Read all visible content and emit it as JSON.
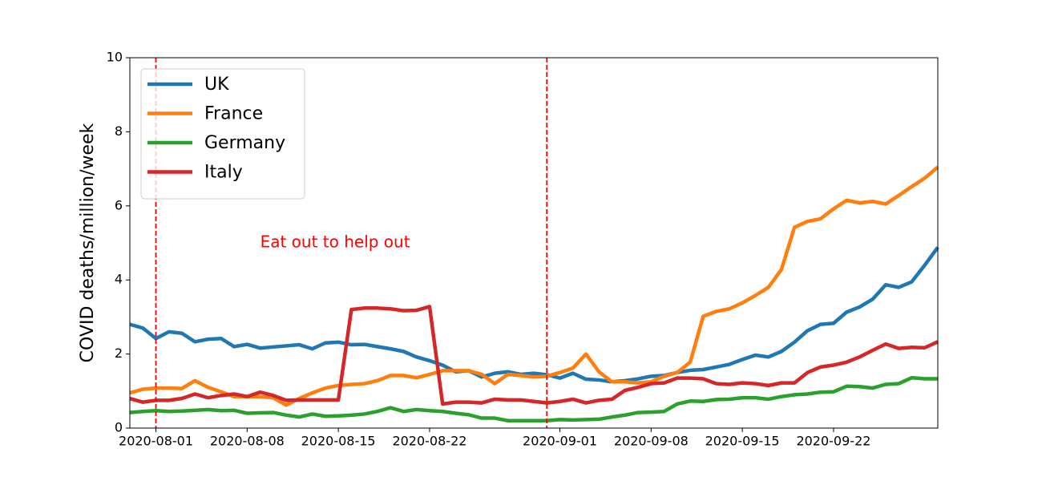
{
  "chart_data": {
    "type": "line",
    "ylabel": "COVID deaths/million/week",
    "x": [
      "2020-07-30",
      "2020-07-31",
      "2020-08-01",
      "2020-08-02",
      "2020-08-03",
      "2020-08-04",
      "2020-08-05",
      "2020-08-06",
      "2020-08-07",
      "2020-08-08",
      "2020-08-09",
      "2020-08-10",
      "2020-08-11",
      "2020-08-12",
      "2020-08-13",
      "2020-08-14",
      "2020-08-15",
      "2020-08-16",
      "2020-08-17",
      "2020-08-18",
      "2020-08-19",
      "2020-08-20",
      "2020-08-21",
      "2020-08-22",
      "2020-08-23",
      "2020-08-24",
      "2020-08-25",
      "2020-08-26",
      "2020-08-27",
      "2020-08-28",
      "2020-08-29",
      "2020-08-30",
      "2020-08-31",
      "2020-09-01",
      "2020-09-02",
      "2020-09-03",
      "2020-09-04",
      "2020-09-05",
      "2020-09-06",
      "2020-09-07",
      "2020-09-08",
      "2020-09-09",
      "2020-09-10",
      "2020-09-11",
      "2020-09-12",
      "2020-09-13",
      "2020-09-14",
      "2020-09-15",
      "2020-09-16",
      "2020-09-17",
      "2020-09-18",
      "2020-09-19",
      "2020-09-20",
      "2020-09-21",
      "2020-09-22",
      "2020-09-23",
      "2020-09-24",
      "2020-09-25",
      "2020-09-26",
      "2020-09-27",
      "2020-09-28",
      "2020-09-29",
      "2020-09-30"
    ],
    "series": [
      {
        "name": "UK",
        "color": "#1f77b4",
        "values": [
          2.8,
          2.7,
          2.42,
          2.6,
          2.56,
          2.33,
          2.4,
          2.42,
          2.2,
          2.26,
          2.16,
          2.19,
          2.22,
          2.25,
          2.14,
          2.3,
          2.32,
          2.25,
          2.26,
          2.2,
          2.14,
          2.07,
          1.92,
          1.82,
          1.7,
          1.52,
          1.55,
          1.38,
          1.48,
          1.52,
          1.45,
          1.48,
          1.44,
          1.35,
          1.48,
          1.32,
          1.3,
          1.25,
          1.28,
          1.33,
          1.4,
          1.42,
          1.5,
          1.56,
          1.58,
          1.65,
          1.72,
          1.85,
          1.97,
          1.92,
          2.07,
          2.32,
          2.63,
          2.8,
          2.83,
          3.13,
          3.27,
          3.48,
          3.87,
          3.8,
          3.95,
          4.4,
          4.88
        ]
      },
      {
        "name": "France",
        "color": "#ff7f0e",
        "values": [
          0.95,
          1.05,
          1.08,
          1.08,
          1.07,
          1.28,
          1.1,
          0.98,
          0.85,
          0.85,
          0.85,
          0.82,
          0.62,
          0.8,
          0.95,
          1.08,
          1.15,
          1.18,
          1.2,
          1.28,
          1.42,
          1.42,
          1.36,
          1.45,
          1.55,
          1.55,
          1.55,
          1.45,
          1.2,
          1.45,
          1.42,
          1.38,
          1.4,
          1.5,
          1.62,
          2.0,
          1.52,
          1.25,
          1.25,
          1.22,
          1.25,
          1.4,
          1.5,
          1.78,
          3.02,
          3.15,
          3.22,
          3.38,
          3.58,
          3.8,
          4.28,
          5.42,
          5.58,
          5.65,
          5.92,
          6.15,
          6.08,
          6.12,
          6.05,
          6.28,
          6.52,
          6.75,
          7.05
        ]
      },
      {
        "name": "Germany",
        "color": "#2ca02c",
        "values": [
          0.42,
          0.45,
          0.47,
          0.45,
          0.46,
          0.48,
          0.5,
          0.47,
          0.48,
          0.4,
          0.41,
          0.42,
          0.35,
          0.3,
          0.38,
          0.32,
          0.33,
          0.35,
          0.38,
          0.45,
          0.55,
          0.45,
          0.5,
          0.47,
          0.45,
          0.4,
          0.36,
          0.27,
          0.27,
          0.2,
          0.2,
          0.2,
          0.2,
          0.23,
          0.22,
          0.23,
          0.24,
          0.3,
          0.35,
          0.42,
          0.43,
          0.45,
          0.65,
          0.73,
          0.72,
          0.77,
          0.78,
          0.82,
          0.82,
          0.78,
          0.85,
          0.9,
          0.92,
          0.97,
          0.98,
          1.13,
          1.12,
          1.08,
          1.18,
          1.2,
          1.36,
          1.33,
          1.33
        ]
      },
      {
        "name": "Italy",
        "color": "#d62728",
        "values": [
          0.8,
          0.7,
          0.75,
          0.75,
          0.8,
          0.92,
          0.82,
          0.88,
          0.92,
          0.85,
          0.97,
          0.88,
          0.75,
          0.76,
          0.76,
          0.76,
          0.76,
          3.2,
          3.24,
          3.24,
          3.22,
          3.17,
          3.18,
          3.28,
          0.65,
          0.7,
          0.7,
          0.68,
          0.78,
          0.76,
          0.76,
          0.72,
          0.68,
          0.72,
          0.78,
          0.68,
          0.75,
          0.78,
          1.02,
          1.1,
          1.2,
          1.22,
          1.35,
          1.35,
          1.33,
          1.2,
          1.18,
          1.22,
          1.2,
          1.15,
          1.22,
          1.22,
          1.5,
          1.65,
          1.7,
          1.78,
          1.92,
          2.1,
          2.27,
          2.15,
          2.18,
          2.17,
          2.33
        ]
      }
    ],
    "xlim": [
      "2020-07-30",
      "2020-09-30"
    ],
    "xticks": [
      "2020-08-01",
      "2020-08-08",
      "2020-08-15",
      "2020-08-22",
      "2020-09-01",
      "2020-09-08",
      "2020-09-15",
      "2020-09-22"
    ],
    "ylim": [
      0,
      10
    ],
    "yticks": [
      0,
      2,
      4,
      6,
      8,
      10
    ],
    "vlines": {
      "x": [
        "2020-08-01",
        "2020-08-31"
      ],
      "color": "#ff0000"
    },
    "annotation": {
      "text": "Eat out to help out",
      "x": "2020-08-09",
      "y": 5,
      "color": "#ff0000"
    },
    "legend": "upper left"
  }
}
